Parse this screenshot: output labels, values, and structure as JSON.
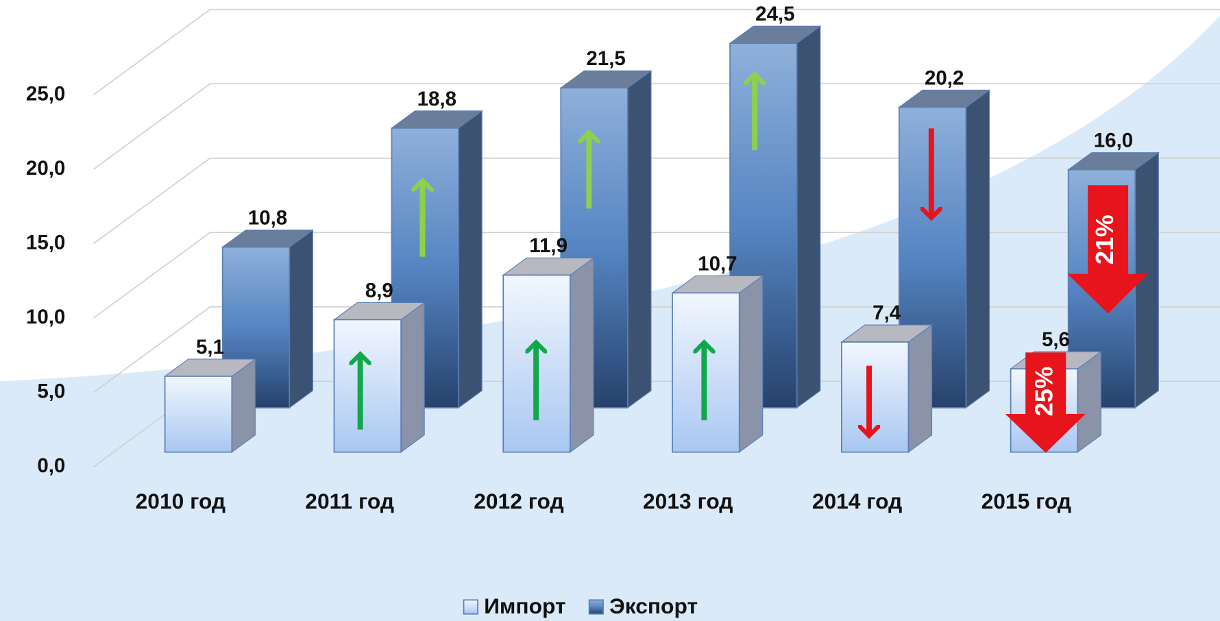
{
  "chart_data": {
    "type": "bar3d",
    "categories": [
      "2010 год",
      "2011 год",
      "2012 год",
      "2013 год",
      "2014 год",
      "2015 год"
    ],
    "series": [
      {
        "name": "Импорт",
        "color": "#c6dcf7",
        "values": [
          5.1,
          8.9,
          11.9,
          10.7,
          7.4,
          5.6
        ],
        "value_labels": [
          "5,1",
          "8,9",
          "11,9",
          "10,7",
          "7,4",
          "5,6"
        ]
      },
      {
        "name": "Экспорт",
        "color": "#4a7ab8",
        "values": [
          10.8,
          18.8,
          21.5,
          24.5,
          20.2,
          16.0
        ],
        "value_labels": [
          "10,8",
          "18,8",
          "21,5",
          "24,5",
          "20,2",
          "16,0"
        ]
      }
    ],
    "ylim": [
      0,
      25
    ],
    "yticks": [
      {
        "value": 0,
        "label": "0,0"
      },
      {
        "value": 5,
        "label": "5,0"
      },
      {
        "value": 10,
        "label": "10,0"
      },
      {
        "value": 15,
        "label": "15,0"
      },
      {
        "value": 20,
        "label": "20,0"
      },
      {
        "value": 25,
        "label": "25,0"
      }
    ],
    "grid": true,
    "legend": "bottom",
    "annotations": [
      "21%",
      "25%"
    ]
  }
}
